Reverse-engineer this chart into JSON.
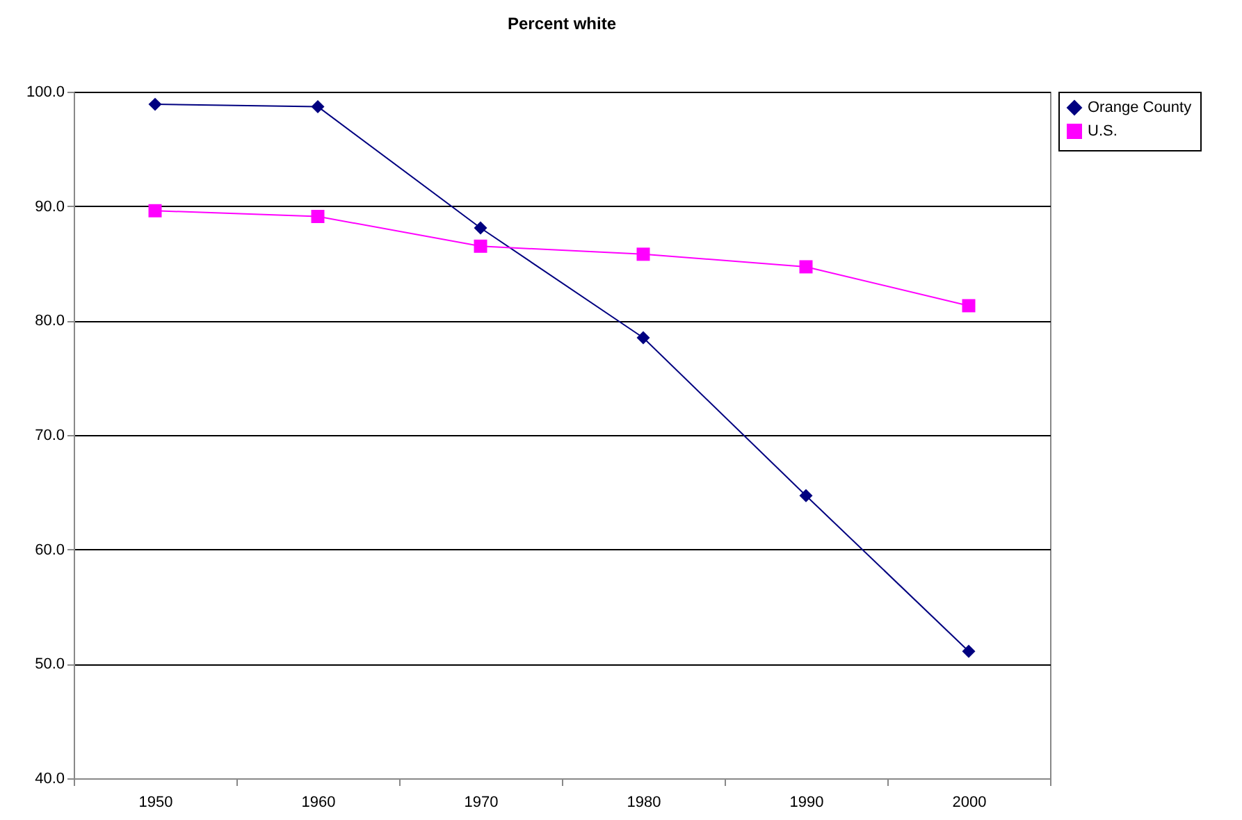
{
  "chart_data": {
    "type": "line",
    "title": "Percent white",
    "categories": [
      "1950",
      "1960",
      "1970",
      "1980",
      "1990",
      "2000"
    ],
    "series": [
      {
        "name": "Orange County",
        "color": "#000080",
        "marker": "diamond",
        "values": [
          98.9,
          98.7,
          88.1,
          78.5,
          64.7,
          51.1
        ]
      },
      {
        "name": "U.S.",
        "color": "#ff00ff",
        "marker": "square",
        "values": [
          89.6,
          89.1,
          86.5,
          85.8,
          84.7,
          81.3
        ]
      }
    ],
    "ylim": [
      40,
      100
    ],
    "yticks": [
      {
        "value": 40,
        "label": "40.0"
      },
      {
        "value": 50,
        "label": "50.0"
      },
      {
        "value": 60,
        "label": "60.0"
      },
      {
        "value": 70,
        "label": "70.0"
      },
      {
        "value": 80,
        "label": "80.0"
      },
      {
        "value": 90,
        "label": "90.0"
      },
      {
        "value": 100,
        "label": "100.0"
      }
    ],
    "grid": "y",
    "legend": "right"
  }
}
